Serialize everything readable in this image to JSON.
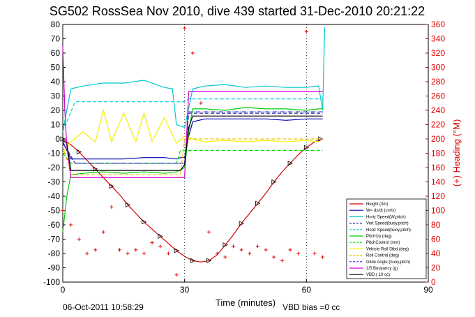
{
  "chart_data": {
    "type": "line",
    "title": "SG502 RossSea Nov 2010, dive 439 started 31-Dec-2010 20:21:22",
    "xlabel": "Time (minutes)",
    "ylabel_right": "(+) Heading (°M)",
    "xlim": [
      0,
      90
    ],
    "ylim": [
      -100,
      80
    ],
    "ylim_right": [
      0,
      360
    ],
    "xticks": [
      "0",
      "30",
      "60",
      "90"
    ],
    "yticks": [
      "80",
      "70",
      "60",
      "50",
      "40",
      "30",
      "20",
      "10",
      "0",
      "-10",
      "-20",
      "-30",
      "-40",
      "-50",
      "-60",
      "-70",
      "-80",
      "-90",
      "-100"
    ],
    "yticks_right": [
      "360",
      "340",
      "320",
      "300",
      "280",
      "260",
      "240",
      "220",
      "200",
      "180",
      "160",
      "140",
      "120",
      "100",
      "80",
      "60",
      "40",
      "20",
      "0"
    ],
    "grid": "dotted at x = 30, 60",
    "legend_position": "lower-right",
    "footer_left": "06-Oct-2011 10:58:29",
    "footer_right": "VBD bias =0 cc",
    "series": [
      {
        "name": "Height (3m)",
        "color": "#d00000",
        "style": "solid-triangles",
        "x": [
          0,
          2,
          4,
          6,
          8,
          10,
          12,
          14,
          16,
          18,
          20,
          22,
          24,
          26,
          28,
          30,
          32,
          34,
          36,
          38,
          40,
          42,
          44,
          46,
          48,
          50,
          52,
          54,
          56,
          58,
          60,
          62,
          63.5
        ],
        "y": [
          0,
          -4,
          -9,
          -15,
          -21,
          -27,
          -33,
          -39,
          -46,
          -52,
          -58,
          -63,
          -68,
          -73,
          -78,
          -82,
          -85,
          -86,
          -85,
          -81,
          -74,
          -67,
          -59,
          -52,
          -45,
          -38,
          -30,
          -23,
          -17,
          -11,
          -6,
          -2,
          0
        ]
      },
      {
        "name": "W= dz/dt (cm/s)",
        "color": "#0000b0",
        "style": "solid",
        "x": [
          0,
          1,
          2,
          5,
          10,
          15,
          20,
          25,
          28,
          29,
          30,
          31,
          32,
          35,
          40,
          45,
          50,
          55,
          60,
          63,
          64
        ],
        "y": [
          -2,
          -8,
          -14,
          -14,
          -14,
          -14,
          -13,
          -13,
          -14,
          -13,
          -13,
          2,
          12,
          14,
          14,
          14,
          14,
          13,
          14,
          14,
          14
        ]
      },
      {
        "name": "Horiz Speed(W,pitch)",
        "color": "#00c8c8",
        "style": "solid",
        "x": [
          0,
          2,
          5,
          10,
          15,
          20,
          25,
          27,
          28,
          30,
          32,
          35,
          40,
          45,
          50,
          55,
          60,
          63,
          64,
          64.5
        ],
        "y": [
          5,
          35,
          37,
          39,
          39,
          41,
          36,
          35,
          10,
          8,
          35,
          37,
          38,
          36,
          37,
          36,
          36,
          37,
          20,
          78
        ]
      },
      {
        "name": "Vert Speed(buoy,pitch)",
        "color": "#2020a0",
        "style": "dashed",
        "x": [
          0,
          3,
          30,
          31,
          64
        ],
        "y": [
          -2,
          -17,
          -17,
          18,
          18
        ]
      },
      {
        "name": "Horiz Speed(buoy,pitch)",
        "color": "#00d0d0",
        "style": "dashed",
        "x": [
          0,
          3,
          30,
          31,
          64
        ],
        "y": [
          5,
          26,
          26,
          28,
          28
        ]
      },
      {
        "name": "PitchUp (deg)",
        "color": "#00cc00",
        "style": "solid",
        "x": [
          0,
          1,
          2,
          5,
          10,
          15,
          20,
          25,
          28,
          30,
          31,
          32,
          35,
          40,
          45,
          50,
          55,
          60,
          63,
          64
        ],
        "y": [
          -65,
          -40,
          -25,
          -24,
          -23,
          -24,
          -23,
          -24,
          -23,
          -20,
          5,
          21,
          21,
          20,
          22,
          21,
          21,
          20,
          21,
          21
        ]
      },
      {
        "name": "PitchControl (mm)",
        "color": "#00e000",
        "style": "dashed",
        "x": [
          0,
          2,
          28,
          29,
          64
        ],
        "y": [
          -10,
          -17,
          -17,
          -8,
          -8
        ]
      },
      {
        "name": "Vehicle Roll Stbd (deg)",
        "color": "#f0f000",
        "style": "solid",
        "x": [
          0,
          2,
          5,
          8,
          10,
          12,
          15,
          18,
          20,
          22,
          25,
          28,
          30,
          32,
          35,
          40,
          45,
          50,
          55,
          60,
          63
        ],
        "y": [
          -10,
          -2,
          5,
          -2,
          20,
          -2,
          18,
          -2,
          18,
          -2,
          15,
          -3,
          2,
          0,
          -2,
          -1,
          -2,
          -1,
          -2,
          -1,
          -2
        ]
      },
      {
        "name": "Roll Control (deg)",
        "color": "#f0c000",
        "style": "dashed",
        "x": [
          0,
          2,
          29,
          30,
          64
        ],
        "y": [
          -5,
          -25,
          -25,
          0,
          0
        ]
      },
      {
        "name": "Glide Angle (buoy,pitch)",
        "color": "#3030d0",
        "style": "dash-dot",
        "x": [
          0,
          3,
          30,
          31,
          64
        ],
        "y": [
          -3,
          -17,
          -17,
          19,
          19
        ]
      },
      {
        "name": "1/5 Buoyancy (g)",
        "color": "#d000d0",
        "style": "solid",
        "x": [
          0,
          0.5,
          1,
          2,
          5,
          29,
          30,
          31,
          64
        ],
        "y": [
          65,
          20,
          -5,
          -27,
          -27,
          -27,
          -27,
          33,
          33
        ]
      },
      {
        "name": "VBD ( 10 cc)",
        "color": "#000000",
        "style": "solid",
        "x": [
          0,
          1,
          2,
          29,
          30,
          31,
          32,
          64
        ],
        "y": [
          -1,
          -3,
          -22,
          -22,
          -18,
          8,
          16,
          16
        ]
      }
    ],
    "heading_series": {
      "name": "Heading",
      "color": "#e00000",
      "marker": "+",
      "axis": "right",
      "x": [
        0,
        2,
        4,
        6,
        8,
        10,
        12,
        14,
        16,
        18,
        20,
        22,
        24,
        26,
        28,
        30,
        32,
        34,
        36,
        38,
        40,
        42,
        44,
        46,
        48,
        50,
        52,
        54,
        56,
        58,
        60,
        62,
        64
      ],
      "y": [
        100,
        80,
        60,
        40,
        45,
        70,
        105,
        45,
        40,
        45,
        40,
        55,
        50,
        40,
        10,
        355,
        320,
        250,
        70,
        40,
        35,
        50,
        45,
        40,
        50,
        45,
        35,
        30,
        45,
        40,
        350,
        40,
        35
      ]
    }
  }
}
